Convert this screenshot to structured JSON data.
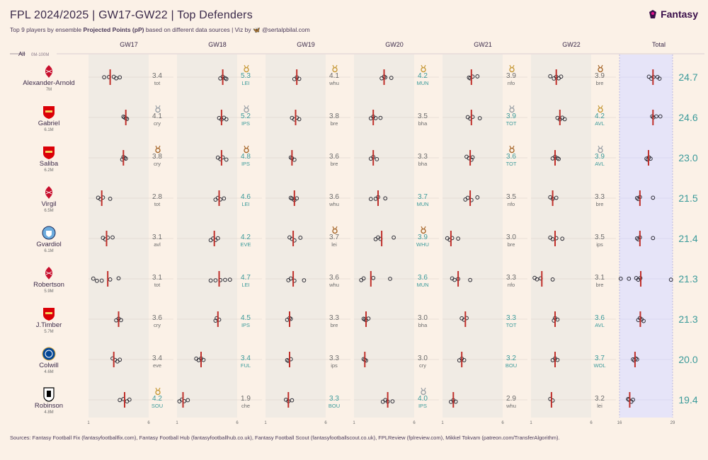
{
  "header": {
    "title": "FPL 2024/2025 | GW17-GW22 | Top Defenders",
    "subtitle_pre": "Top 9 players by ensemble ",
    "subtitle_bold": "Projected Points (pP)",
    "subtitle_post": " based on different data sources | Viz by ",
    "subtitle_handle": "@sertalpbilal.com",
    "brand": "Fantasy"
  },
  "colors": {
    "background": "#fbf1e7",
    "column_band": "#f0ebe4",
    "total_band": "#e6e4f8",
    "median_line": "#c0302b",
    "point_stroke": "#2b2b35",
    "value_teal": "#3a9a9a",
    "value_gray": "#6b6b6b",
    "medal_gold": "#c79a3a",
    "medal_silver": "#9aa0a6",
    "medal_bronze": "#a8692d",
    "liverpool": "#c8102e",
    "arsenal": "#db0007",
    "mancity": "#6cabdd",
    "chelsea": "#034694",
    "fulham": "#000000"
  },
  "filter": {
    "label": "All",
    "range": "0M-100M"
  },
  "chart_data": {
    "type": "strip",
    "columns": [
      "GW17",
      "GW18",
      "GW19",
      "GW20",
      "GW21",
      "GW22",
      "Total"
    ],
    "axis_gw": {
      "min": 1,
      "max": 6,
      "tick_labels": [
        "1",
        "6"
      ]
    },
    "axis_total": {
      "min": 16,
      "max": 29,
      "tick_labels": [
        "16",
        "29"
      ]
    },
    "players": [
      {
        "name": "Alexander-Arnold",
        "price": "7M",
        "club": "liverpool",
        "total": "24.7",
        "total_medal": "",
        "total_points": [
          23.2,
          23.8,
          24.3,
          25.3,
          25.8
        ],
        "total_median": 24.2,
        "gws": [
          {
            "value": "3.4",
            "opp": "tot",
            "medal": "",
            "points": [
              2.3,
              2.7,
              3.1,
              3.3,
              3.6
            ],
            "median": 2.8
          },
          {
            "value": "5.3",
            "opp": "LEI",
            "medal": "gold",
            "points": [
              4.6,
              4.8,
              5.0,
              5.1
            ],
            "median": 4.8
          },
          {
            "value": "4.1",
            "opp": "whu",
            "medal": "gold",
            "points": [
              3.4,
              3.6,
              3.8
            ],
            "median": 3.6
          },
          {
            "value": "4.2",
            "opp": "MUN",
            "medal": "gold",
            "points": [
              3.3,
              3.5,
              3.6,
              4.1
            ],
            "median": 3.5
          },
          {
            "value": "3.9",
            "opp": "nfo",
            "medal": "gold",
            "points": [
              3.2,
              3.3,
              3.5,
              3.9
            ],
            "median": 3.4
          },
          {
            "value": "3.9",
            "opp": "bre",
            "medal": "bronze",
            "points": [
              2.6,
              2.9,
              3.1,
              3.3,
              3.5
            ],
            "median": 3.1
          }
        ]
      },
      {
        "name": "Gabriel",
        "price": "6.1M",
        "club": "arsenal",
        "total": "24.6",
        "total_medal": "",
        "total_points": [
          24.0,
          24.3,
          25.0,
          26.0
        ],
        "total_median": 24.2,
        "gws": [
          {
            "value": "4.1",
            "opp": "cry",
            "medal": "silver",
            "points": [
              3.9,
              4.0,
              4.1,
              4.2
            ],
            "median": 4.1
          },
          {
            "value": "5.2",
            "opp": "IPS",
            "medal": "silver",
            "points": [
              4.5,
              4.7,
              4.9,
              5.1
            ],
            "median": 4.7
          },
          {
            "value": "3.8",
            "opp": "bre",
            "medal": "",
            "points": [
              3.2,
              3.4,
              3.6,
              3.8
            ],
            "median": 3.5
          },
          {
            "value": "3.5",
            "opp": "bha",
            "medal": "",
            "points": [
              2.4,
              2.6,
              2.8,
              3.2
            ],
            "median": 2.6
          },
          {
            "value": "3.9",
            "opp": "TOT",
            "medal": "silver",
            "points": [
              3.1,
              3.3,
              3.5,
              4.1
            ],
            "median": 3.4
          },
          {
            "value": "4.2",
            "opp": "AVL",
            "medal": "gold",
            "points": [
              3.2,
              3.4,
              3.6,
              3.8
            ],
            "median": 3.4
          }
        ]
      },
      {
        "name": "Saliba",
        "price": "6.2M",
        "club": "arsenal",
        "total": "23.0",
        "total_medal": "",
        "total_points": [
          22.6,
          22.9,
          23.2,
          23.6
        ],
        "total_median": 23.1,
        "gws": [
          {
            "value": "3.8",
            "opp": "cry",
            "medal": "bronze",
            "points": [
              3.8,
              3.9,
              4.0,
              4.1
            ],
            "median": 3.9
          },
          {
            "value": "4.8",
            "opp": "IPS",
            "medal": "bronze",
            "points": [
              4.4,
              4.6,
              4.8,
              5.1
            ],
            "median": 4.7
          },
          {
            "value": "3.6",
            "opp": "bre",
            "medal": "",
            "points": [
              3.1,
              3.2,
              3.4
            ],
            "median": 3.2
          },
          {
            "value": "3.3",
            "opp": "bha",
            "medal": "",
            "points": [
              2.4,
              2.6,
              2.9
            ],
            "median": 2.6
          },
          {
            "value": "3.6",
            "opp": "TOT",
            "medal": "bronze",
            "points": [
              3.0,
              3.2,
              3.4,
              3.5
            ],
            "median": 3.3
          },
          {
            "value": "3.9",
            "opp": "AVL",
            "medal": "silver",
            "points": [
              2.8,
              3.0,
              3.2,
              3.3
            ],
            "median": 3.0
          }
        ]
      },
      {
        "name": "Virgil",
        "price": "6.5M",
        "club": "liverpool",
        "total": "21.5",
        "total_medal": "",
        "total_points": [
          20.3,
          20.6,
          21.0,
          24.2
        ],
        "total_median": 21.0,
        "gws": [
          {
            "value": "2.8",
            "opp": "tot",
            "medal": "",
            "points": [
              1.8,
              2.0,
              2.2,
              2.8
            ],
            "median": 2.1
          },
          {
            "value": "4.6",
            "opp": "LEI",
            "medal": "",
            "points": [
              4.2,
              4.4,
              4.6,
              4.9
            ],
            "median": 4.5
          },
          {
            "value": "3.6",
            "opp": "whu",
            "medal": "",
            "points": [
              3.1,
              3.2,
              3.4,
              3.6
            ],
            "median": 3.4
          },
          {
            "value": "3.7",
            "opp": "MUN",
            "medal": "",
            "points": [
              2.4,
              2.8,
              3.0,
              3.6
            ],
            "median": 3.0
          },
          {
            "value": "3.5",
            "opp": "nfo",
            "medal": "",
            "points": [
              2.9,
              3.1,
              3.4,
              3.9
            ],
            "median": 3.3
          },
          {
            "value": "3.3",
            "opp": "bre",
            "medal": "",
            "points": [
              2.6,
              2.8,
              3.1
            ],
            "median": 2.8
          }
        ]
      },
      {
        "name": "Gvardiol",
        "price": "6.1M",
        "club": "mancity",
        "total": "21.4",
        "total_medal": "",
        "total_points": [
          20.3,
          20.6,
          21.0,
          24.2
        ],
        "total_median": 21.0,
        "gws": [
          {
            "value": "3.1",
            "opp": "avl",
            "medal": "",
            "points": [
              2.2,
              2.4,
              2.6,
              3.0
            ],
            "median": 2.5
          },
          {
            "value": "4.2",
            "opp": "EVE",
            "medal": "",
            "points": [
              3.8,
              4.0,
              4.2,
              4.4
            ],
            "median": 4.1
          },
          {
            "value": "3.7",
            "opp": "lei",
            "medal": "bronze",
            "points": [
              3.0,
              3.2,
              3.4,
              3.9
            ],
            "median": 3.3
          },
          {
            "value": "3.9",
            "opp": "WHU",
            "medal": "bronze",
            "points": [
              2.8,
              3.0,
              3.2,
              4.3
            ],
            "median": 3.3
          },
          {
            "value": "3.0",
            "opp": "bre",
            "medal": "",
            "points": [
              1.4,
              1.6,
              1.8,
              2.3
            ],
            "median": 1.7
          },
          {
            "value": "3.5",
            "opp": "ips",
            "medal": "",
            "points": [
              2.6,
              2.8,
              3.1,
              3.6
            ],
            "median": 3.0
          }
        ]
      },
      {
        "name": "Robertson",
        "price": "5.9M",
        "club": "liverpool",
        "total": "21.3",
        "total_medal": "",
        "total_points": [
          16.3,
          18.3,
          20.1,
          20.6,
          21.1,
          28.6
        ],
        "total_median": 21.2,
        "gws": [
          {
            "value": "3.1",
            "opp": "tot",
            "medal": "",
            "points": [
              1.4,
              1.7,
              2.1,
              2.8,
              3.5
            ],
            "median": 2.6
          },
          {
            "value": "4.7",
            "opp": "LEI",
            "medal": "",
            "points": [
              3.8,
              4.2,
              4.6,
              5.0,
              5.4
            ],
            "median": 4.5
          },
          {
            "value": "3.6",
            "opp": "whu",
            "medal": "",
            "points": [
              2.9,
              3.1,
              3.4,
              4.2
            ],
            "median": 3.3
          },
          {
            "value": "3.6",
            "opp": "MUN",
            "medal": "",
            "points": [
              1.6,
              1.8,
              2.6,
              4.0
            ],
            "median": 2.4
          },
          {
            "value": "3.3",
            "opp": "nfo",
            "medal": "",
            "points": [
              1.8,
              2.0,
              2.3,
              3.3
            ],
            "median": 2.3
          },
          {
            "value": "3.1",
            "opp": "bre",
            "medal": "",
            "points": [
              1.3,
              1.5,
              1.8,
              2.8
            ],
            "median": 1.9
          }
        ]
      },
      {
        "name": "J.Timber",
        "price": "5.7M",
        "club": "arsenal",
        "total": "21.3",
        "total_medal": "",
        "total_points": [
          20.6,
          21.0,
          21.4,
          21.9
        ],
        "total_median": 21.1,
        "gws": [
          {
            "value": "3.6",
            "opp": "cry",
            "medal": "",
            "points": [
              3.3,
              3.5,
              3.7
            ],
            "median": 3.5
          },
          {
            "value": "4.5",
            "opp": "IPS",
            "medal": "",
            "points": [
              4.2,
              4.3,
              4.5
            ],
            "median": 4.4
          },
          {
            "value": "3.3",
            "opp": "bre",
            "medal": "",
            "points": [
              2.8,
              3.0,
              3.1
            ],
            "median": 3.0
          },
          {
            "value": "3.0",
            "opp": "bha",
            "medal": "",
            "points": [
              1.8,
              1.9,
              2.0,
              2.2
            ],
            "median": 2.0
          },
          {
            "value": "3.3",
            "opp": "TOT",
            "medal": "",
            "points": [
              2.6,
              2.8,
              3.0
            ],
            "median": 2.9
          },
          {
            "value": "3.6",
            "opp": "AVL",
            "medal": "",
            "points": [
              2.9,
              3.0,
              3.2
            ],
            "median": 3.0
          }
        ]
      },
      {
        "name": "Colwill",
        "price": "4.6M",
        "club": "chelsea",
        "total": "20.0",
        "total_medal": "",
        "total_points": [
          19.3,
          19.6,
          20.0,
          20.3
        ],
        "total_median": 19.8,
        "gws": [
          {
            "value": "3.4",
            "opp": "eve",
            "medal": "",
            "points": [
              3.0,
              3.2,
              3.4,
              3.6
            ],
            "median": 3.1
          },
          {
            "value": "3.4",
            "opp": "FUL",
            "medal": "",
            "points": [
              2.6,
              2.8,
              3.0,
              3.2
            ],
            "median": 3.0
          },
          {
            "value": "3.3",
            "opp": "ips",
            "medal": "",
            "points": [
              2.8,
              2.9,
              3.1
            ],
            "median": 3.0
          },
          {
            "value": "3.0",
            "opp": "cry",
            "medal": "",
            "points": [
              1.8,
              1.9,
              2.0
            ],
            "median": 1.9
          },
          {
            "value": "3.2",
            "opp": "BOU",
            "medal": "",
            "points": [
              2.4,
              2.6,
              2.8
            ],
            "median": 2.6
          },
          {
            "value": "3.7",
            "opp": "WOL",
            "medal": "",
            "points": [
              2.8,
              3.0,
              3.2
            ],
            "median": 3.0
          }
        ]
      },
      {
        "name": "Robinson",
        "price": "4.8M",
        "club": "fulham",
        "total": "19.4",
        "total_medal": "",
        "total_points": [
          18.1,
          18.3,
          18.9,
          19.3
        ],
        "total_median": 18.5,
        "gws": [
          {
            "value": "4.2",
            "opp": "SOU",
            "medal": "gold",
            "points": [
              3.6,
              3.9,
              4.2,
              4.4
            ],
            "median": 4.0
          },
          {
            "value": "1.9",
            "opp": "che",
            "medal": "",
            "points": [
              1.2,
              1.4,
              1.6,
              1.9
            ],
            "median": 1.5
          },
          {
            "value": "3.3",
            "opp": "BOU",
            "medal": "",
            "points": [
              2.7,
              2.9,
              3.2
            ],
            "median": 2.9
          },
          {
            "value": "4.0",
            "opp": "IPS",
            "medal": "silver",
            "points": [
              3.4,
              3.6,
              3.8,
              4.2
            ],
            "median": 3.8
          },
          {
            "value": "2.9",
            "opp": "whu",
            "medal": "",
            "points": [
              1.7,
              1.9,
              2.1
            ],
            "median": 1.9
          },
          {
            "value": "3.2",
            "opp": "lei",
            "medal": "",
            "points": [
              2.6,
              2.8
            ],
            "median": 2.7
          }
        ]
      }
    ]
  },
  "footer": {
    "sources": "Sources: Fantasy Football Fix (fantasyfootballfix.com), Fantasy Football Hub (fantasyfootballhub.co.uk), Fantasy Football Scout (fantasyfootballscout.co.uk), FPLReview (fplreview.com), Mikkel Tokvam (patreon.com/TransferAlgorithm)."
  }
}
